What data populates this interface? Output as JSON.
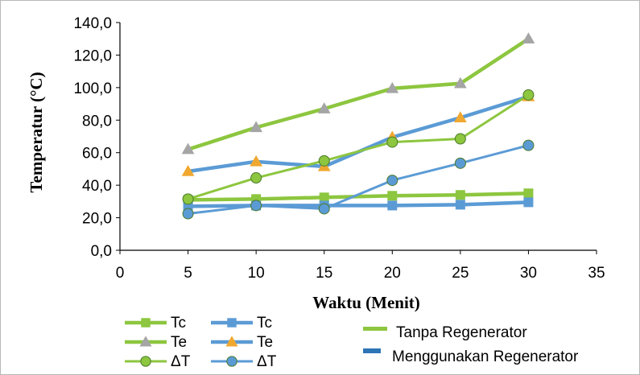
{
  "chart_data": {
    "type": "line",
    "title": "",
    "xlabel": "Waktu (Menit)",
    "ylabel": "Temperatur (°C)",
    "xlim": [
      0,
      35
    ],
    "ylim": [
      0,
      140
    ],
    "x_ticks": [
      "0",
      "5",
      "10",
      "15",
      "20",
      "25",
      "30",
      "35"
    ],
    "y_ticks": [
      "0,0",
      "20,0",
      "40,0",
      "60,0",
      "80,0",
      "100,0",
      "120,0",
      "140,0"
    ],
    "x": [
      5,
      10,
      15,
      20,
      25,
      30
    ],
    "grid": false,
    "legend_position": "bottom-left",
    "colors": {
      "tanpa": "#8dc63f",
      "menggunakan": "#5b9bd5",
      "triangle": "#a5a5a5",
      "triangle_orange": "#f0a830"
    },
    "series": [
      {
        "name": "Tc",
        "group": "tanpa",
        "marker": "square",
        "values": [
          31,
          31.5,
          32.5,
          33.5,
          34,
          35
        ]
      },
      {
        "name": "Tc",
        "group": "menggunakan",
        "marker": "square",
        "values": [
          27,
          27.5,
          27.5,
          27.5,
          28,
          29.5
        ]
      },
      {
        "name": "Te",
        "group": "tanpa",
        "marker": "triangle",
        "values": [
          62,
          75.5,
          87,
          99.5,
          102.5,
          130
        ]
      },
      {
        "name": "Te",
        "group": "menggunakan",
        "marker": "triangle",
        "values": [
          48.5,
          54.5,
          51.5,
          69.5,
          81.5,
          94.5
        ]
      },
      {
        "name": "ΔT",
        "group": "tanpa",
        "marker": "circle",
        "values": [
          31.5,
          44.5,
          55,
          66.5,
          68.5,
          95.5
        ]
      },
      {
        "name": "ΔT",
        "group": "menggunakan",
        "marker": "circle",
        "values": [
          22.5,
          27.5,
          25.5,
          43,
          53.5,
          64.5
        ]
      }
    ],
    "group_legend": {
      "tanpa": "Tanpa Regenerator",
      "menggunakan": "Menggunakan Regenerator"
    }
  }
}
